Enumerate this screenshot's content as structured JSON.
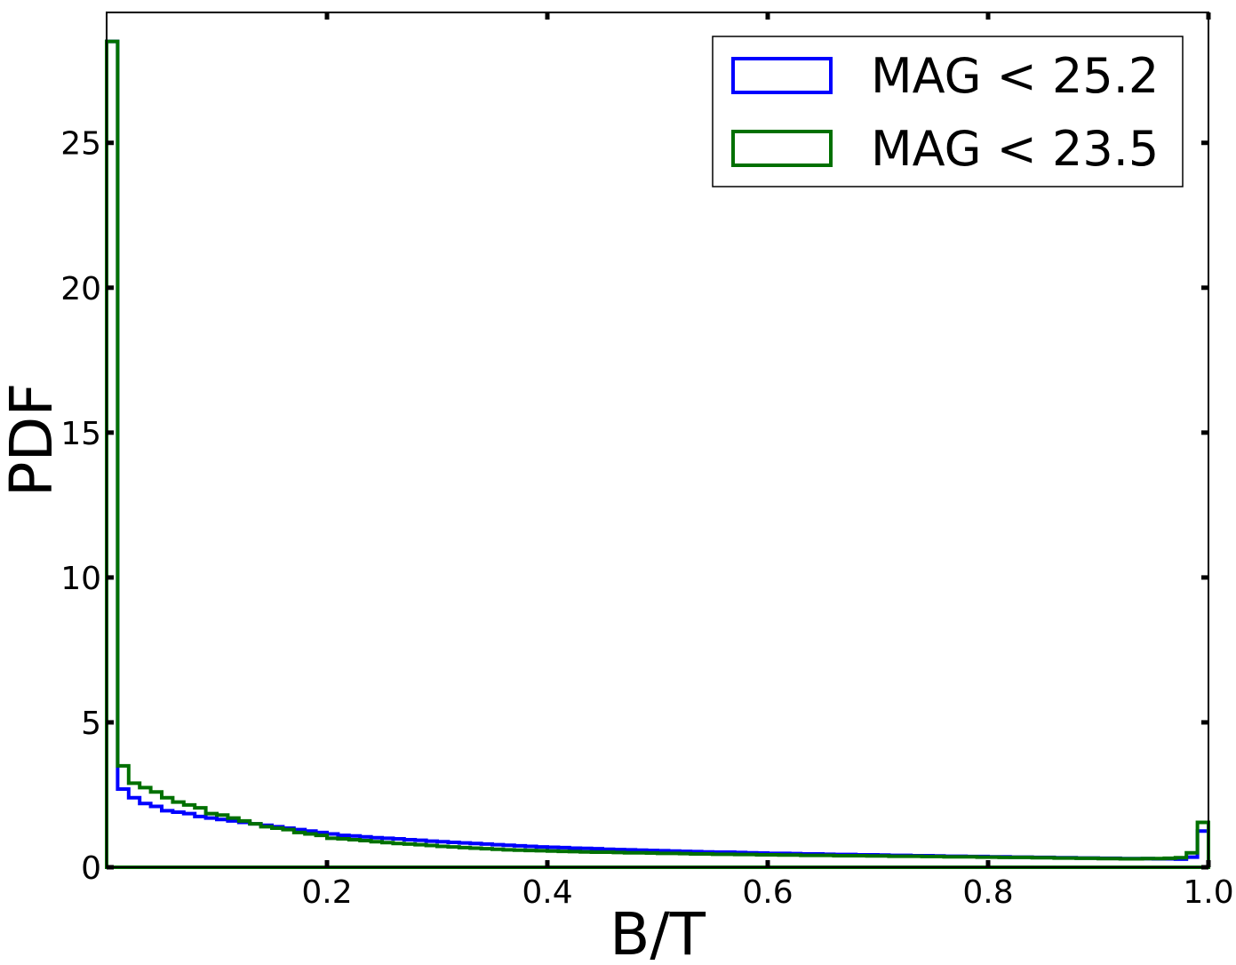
{
  "chart_data": {
    "type": "histogram-step",
    "xlabel": "B/T",
    "ylabel": "PDF",
    "xlim": [
      0.0,
      1.0
    ],
    "ylim": [
      0,
      29.5
    ],
    "xticks": [
      0.2,
      0.4,
      0.6,
      0.8,
      1.0
    ],
    "xtick_labels": [
      "0.2",
      "0.4",
      "0.6",
      "0.8",
      "1.0"
    ],
    "yticks": [
      0,
      5,
      10,
      15,
      20,
      25
    ],
    "ytick_labels": [
      "0",
      "5",
      "10",
      "15",
      "20",
      "25"
    ],
    "grid": false,
    "legend_position": "top-right",
    "bin_width": 0.01,
    "series": [
      {
        "name": "MAG < 25.2",
        "color": "#0000ff",
        "values": [
          28.5,
          2.7,
          2.4,
          2.2,
          2.1,
          1.95,
          1.9,
          1.85,
          1.75,
          1.7,
          1.65,
          1.6,
          1.55,
          1.5,
          1.45,
          1.4,
          1.35,
          1.3,
          1.25,
          1.2,
          1.15,
          1.1,
          1.08,
          1.05,
          1.02,
          1.0,
          0.98,
          0.95,
          0.93,
          0.9,
          0.88,
          0.86,
          0.84,
          0.82,
          0.8,
          0.78,
          0.76,
          0.74,
          0.72,
          0.7,
          0.69,
          0.68,
          0.66,
          0.65,
          0.64,
          0.62,
          0.61,
          0.6,
          0.59,
          0.58,
          0.57,
          0.56,
          0.55,
          0.54,
          0.53,
          0.52,
          0.52,
          0.51,
          0.5,
          0.49,
          0.48,
          0.48,
          0.47,
          0.46,
          0.46,
          0.45,
          0.44,
          0.44,
          0.43,
          0.43,
          0.42,
          0.41,
          0.41,
          0.4,
          0.4,
          0.39,
          0.38,
          0.38,
          0.37,
          0.37,
          0.36,
          0.36,
          0.35,
          0.35,
          0.34,
          0.34,
          0.33,
          0.33,
          0.32,
          0.32,
          0.31,
          0.31,
          0.3,
          0.3,
          0.3,
          0.29,
          0.29,
          0.28,
          0.35,
          1.25
        ]
      },
      {
        "name": "MAG < 23.5",
        "color": "#007000",
        "values": [
          28.5,
          3.5,
          2.9,
          2.75,
          2.6,
          2.4,
          2.25,
          2.15,
          2.05,
          1.85,
          1.8,
          1.7,
          1.6,
          1.5,
          1.4,
          1.35,
          1.3,
          1.2,
          1.15,
          1.1,
          1.0,
          0.98,
          0.95,
          0.92,
          0.88,
          0.85,
          0.82,
          0.8,
          0.78,
          0.75,
          0.72,
          0.7,
          0.68,
          0.66,
          0.64,
          0.62,
          0.6,
          0.59,
          0.58,
          0.57,
          0.56,
          0.55,
          0.54,
          0.53,
          0.52,
          0.52,
          0.51,
          0.5,
          0.5,
          0.49,
          0.48,
          0.48,
          0.47,
          0.46,
          0.46,
          0.45,
          0.45,
          0.44,
          0.44,
          0.43,
          0.43,
          0.42,
          0.42,
          0.41,
          0.41,
          0.41,
          0.4,
          0.4,
          0.4,
          0.39,
          0.39,
          0.38,
          0.38,
          0.38,
          0.37,
          0.37,
          0.36,
          0.36,
          0.36,
          0.35,
          0.35,
          0.34,
          0.34,
          0.34,
          0.33,
          0.33,
          0.32,
          0.32,
          0.31,
          0.31,
          0.3,
          0.3,
          0.29,
          0.29,
          0.3,
          0.3,
          0.31,
          0.33,
          0.5,
          1.55
        ]
      }
    ]
  }
}
